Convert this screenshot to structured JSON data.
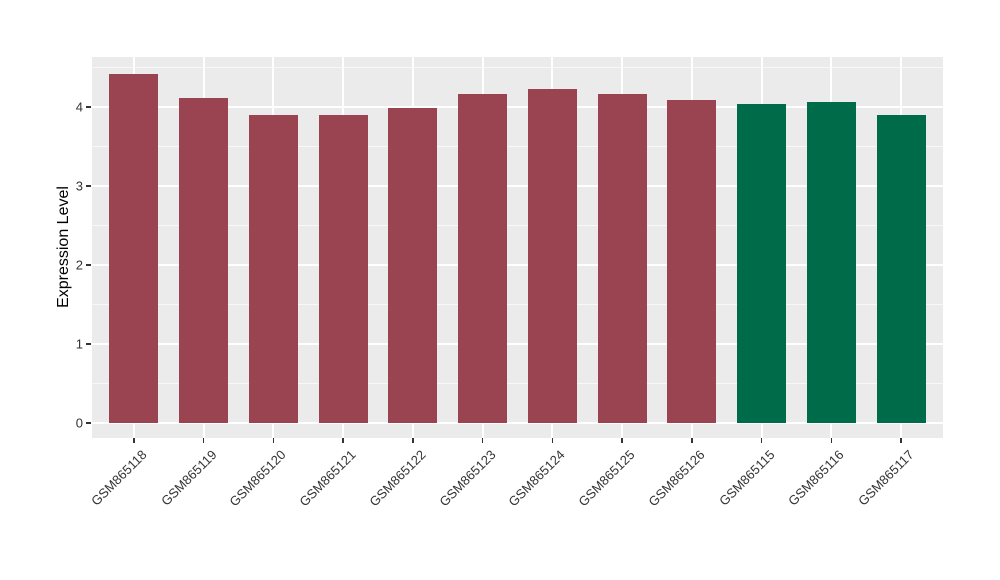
{
  "figure": {
    "background": "#ffffff"
  },
  "chart_data": {
    "type": "bar",
    "title": "",
    "xlabel": "",
    "ylabel": "Expression Level",
    "categories": [
      "GSM865118",
      "GSM865119",
      "GSM865120",
      "GSM865121",
      "GSM865122",
      "GSM865123",
      "GSM865124",
      "GSM865125",
      "GSM865126",
      "GSM865115",
      "GSM865116",
      "GSM865117"
    ],
    "values": [
      4.41,
      4.11,
      3.89,
      3.89,
      3.98,
      4.16,
      4.22,
      4.16,
      4.09,
      4.04,
      4.06,
      3.9
    ],
    "bar_colors": [
      "#9a4351",
      "#9a4351",
      "#9a4351",
      "#9a4351",
      "#9a4351",
      "#9a4351",
      "#9a4351",
      "#9a4351",
      "#9a4351",
      "#006b49",
      "#006b49",
      "#006b49"
    ],
    "group_colors": {
      "group1": "#9a4351",
      "group2": "#006b49"
    },
    "yticks": [
      0,
      1,
      2,
      3,
      4
    ],
    "ytick_labels": [
      "0",
      "1",
      "2",
      "3",
      "4"
    ],
    "minor_yticks": [
      0.5,
      1.5,
      2.5,
      3.5,
      4.5
    ],
    "ylim": [
      -0.19,
      4.63
    ],
    "panel_background": "#ebebeb",
    "gridline_color": "#ffffff",
    "tick_color": "#333333",
    "bar_width_fraction": 0.7,
    "grid": "on",
    "legend_position": "none"
  }
}
